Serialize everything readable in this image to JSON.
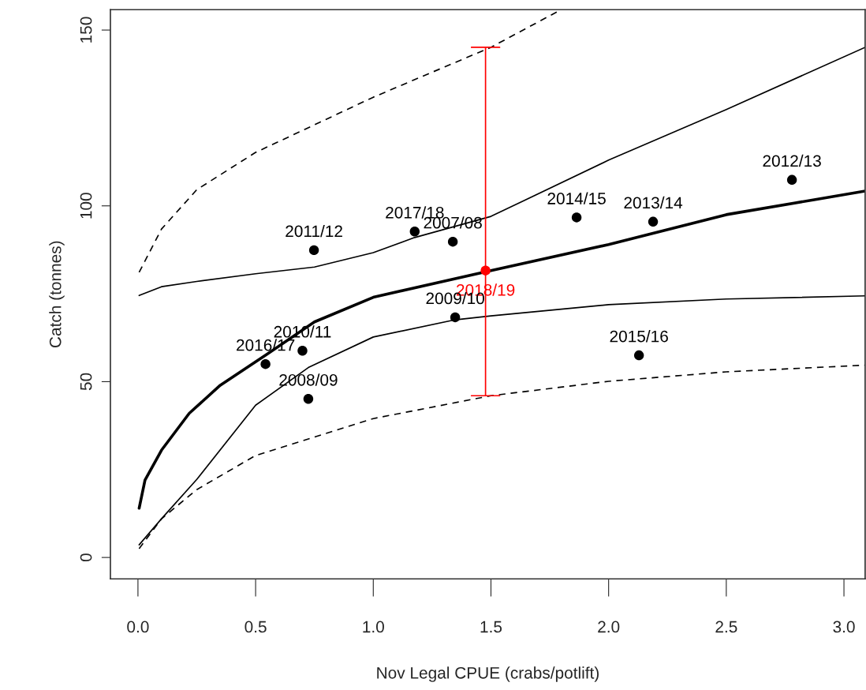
{
  "chart_data": {
    "type": "scatter",
    "xlabel": "Nov Legal CPUE (crabs/potlift)",
    "ylabel": "Catch (tonnes)",
    "xlim": [
      -0.117,
      3.09
    ],
    "ylim": [
      -6.1,
      155.8
    ],
    "xticks": [
      {
        "value": 0,
        "label": "0.0"
      },
      0.5,
      {
        "value": 1,
        "label": "1.0"
      },
      1.5,
      {
        "value": 2,
        "label": "2.0"
      },
      2.5,
      {
        "value": 3,
        "label": "3.0"
      }
    ],
    "yticks": [
      0,
      50,
      100,
      150
    ],
    "grid": false,
    "series": [
      {
        "marker": "circle",
        "color": "#000000",
        "x": [
          0.748,
          1.176,
          1.338,
          1.348,
          0.699,
          0.542,
          0.724,
          2.129,
          1.864,
          2.189,
          2.779
        ],
        "values": [
          87.4,
          92.7,
          89.8,
          68.3,
          58.8,
          55.0,
          45.1,
          57.5,
          96.7,
          95.5,
          107.4
        ]
      },
      {
        "marker": "circle",
        "name": "2018/19",
        "color": "#ff0000",
        "x": [
          1.477
        ],
        "values": [
          81.6
        ],
        "errors": [
          [
            46.0,
            145.1
          ]
        ]
      },
      {
        "type": "line",
        "color": "#000000",
        "line_style": "solid",
        "x": [
          0.005,
          0.03,
          0.1,
          0.218,
          0.35,
          0.553,
          0.75,
          1.0,
          1.5,
          2.0,
          2.5,
          3.09
        ],
        "values": [
          14,
          22,
          30.5,
          41,
          49,
          58,
          67,
          74,
          81.6,
          89,
          97.5,
          104.2
        ]
      },
      {
        "type": "line",
        "color": "#000000",
        "line_style": "solid",
        "x": [
          0.005,
          0.1,
          0.25,
          0.5,
          0.75,
          1.0,
          1.176,
          1.5,
          2.0,
          2.5,
          3.09
        ],
        "values": [
          74.5,
          77,
          78.5,
          80.7,
          82.6,
          86.7,
          91,
          97,
          113,
          127.4,
          145.1
        ]
      },
      {
        "type": "line",
        "color": "#000000",
        "line_style": "solid",
        "x": [
          0.005,
          0.1,
          0.25,
          0.5,
          0.724,
          1.0,
          1.348,
          1.5,
          2.0,
          2.5,
          3.09
        ],
        "values": [
          3.6,
          11,
          22.2,
          43.3,
          54,
          62.7,
          67.6,
          68.7,
          71.9,
          73.5,
          74.4
        ]
      },
      {
        "type": "line",
        "color": "#000000",
        "line_style": "dashed",
        "x": [
          0.005,
          0.1,
          0.25,
          0.5,
          1.0,
          1.5,
          2.0,
          2.5,
          3.09
        ],
        "values": [
          2.5,
          11,
          19.3,
          29,
          39.5,
          46,
          50.1,
          52.8,
          54.7
        ]
      },
      {
        "type": "line",
        "color": "#000000",
        "line_style": "dashed",
        "x": [
          0.005,
          0.1,
          0.25,
          0.5,
          1.0,
          1.5,
          1.79
        ],
        "values": [
          81.1,
          93.4,
          104.6,
          115.2,
          130.9,
          145.1,
          155.5
        ]
      }
    ],
    "annotations": [
      {
        "text": "2011/12",
        "x": 0.748,
        "y": 87.4
      },
      {
        "text": "2017/18",
        "x": 1.176,
        "y": 92.7
      },
      {
        "text": "2007/08",
        "x": 1.338,
        "y": 89.8
      },
      {
        "text": "2009/10",
        "x": 1.348,
        "y": 68.3
      },
      {
        "text": "2010/11",
        "x": 0.699,
        "y": 58.8
      },
      {
        "text": "2016/17",
        "x": 0.542,
        "y": 55.0
      },
      {
        "text": "2008/09",
        "x": 0.724,
        "y": 45.1
      },
      {
        "text": "2015/16",
        "x": 2.129,
        "y": 57.5
      },
      {
        "text": "2014/15",
        "x": 1.864,
        "y": 96.7
      },
      {
        "text": "2013/14",
        "x": 2.189,
        "y": 95.5
      },
      {
        "text": "2012/13",
        "x": 2.779,
        "y": 107.4
      }
    ]
  }
}
